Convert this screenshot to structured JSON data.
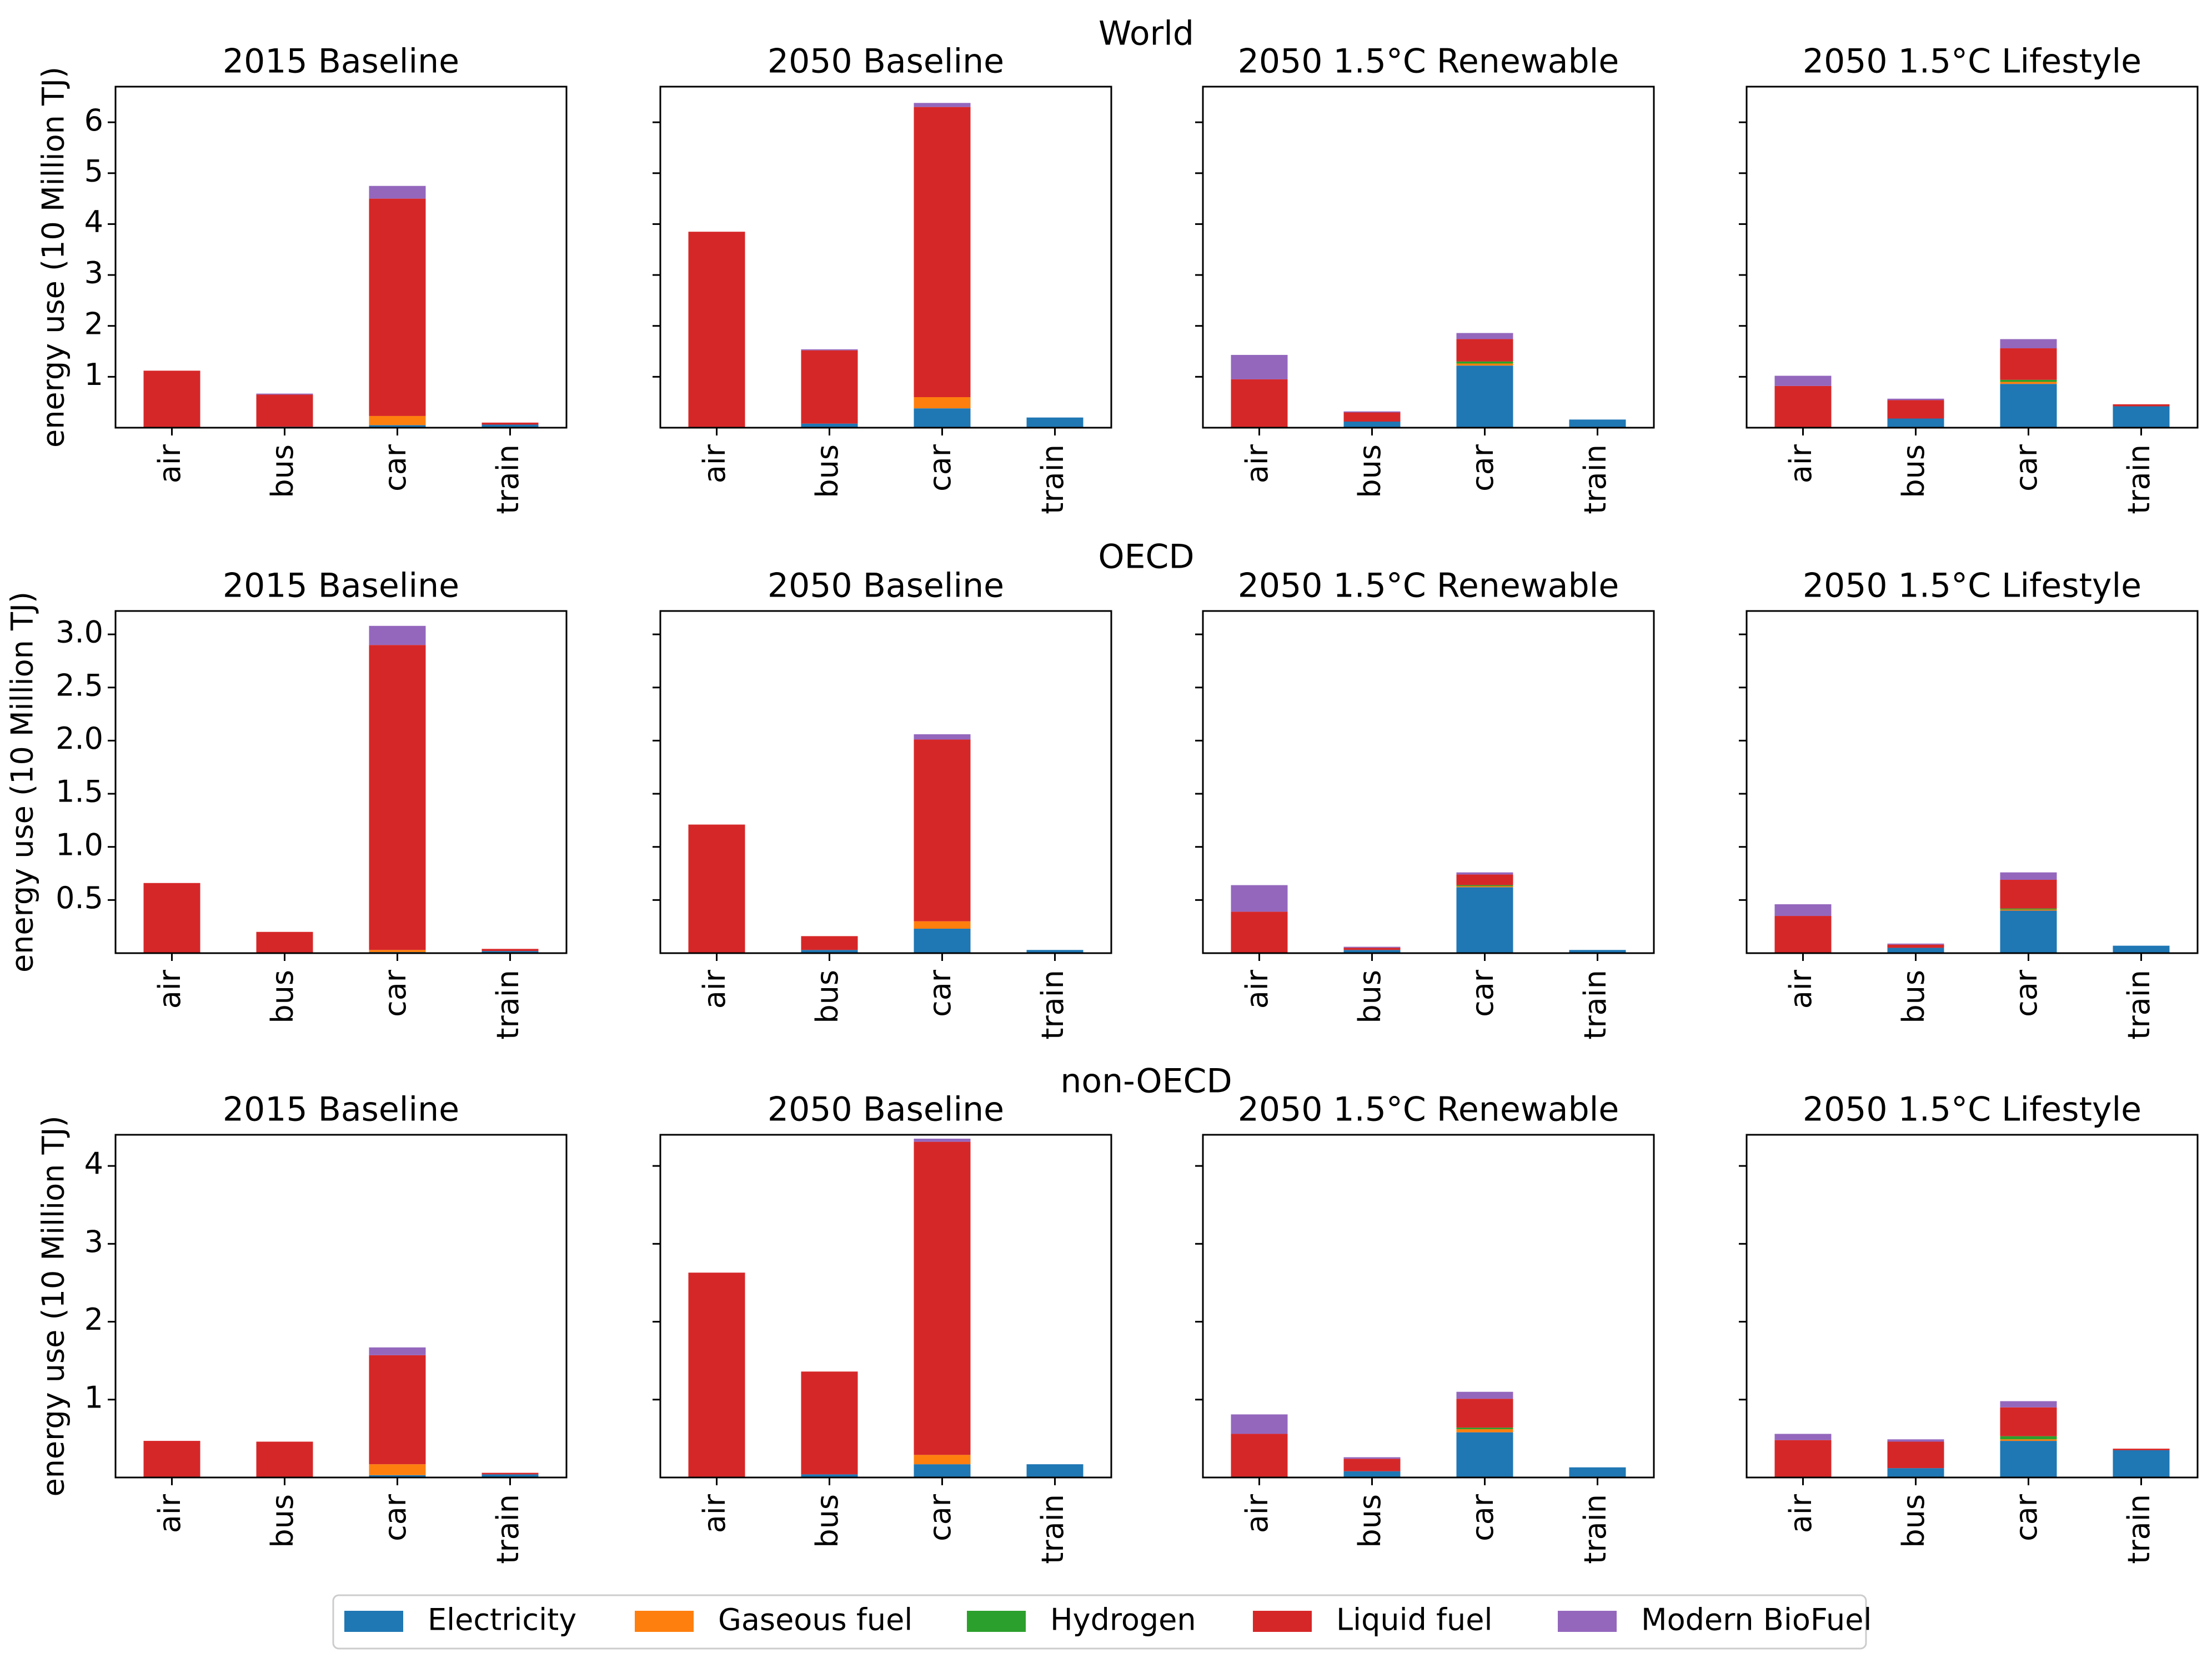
{
  "chart_data": {
    "type": "bar",
    "stacked": true,
    "categories": [
      "air",
      "bus",
      "car",
      "train"
    ],
    "ylabel": "energy use (10 Million TJ)",
    "stack_order": [
      "Electricity",
      "Gaseous fuel",
      "Hydrogen",
      "Liquid fuel",
      "Modern BioFuel"
    ],
    "colors": {
      "Electricity": "#1f77b4",
      "Gaseous fuel": "#ff7f0e",
      "Hydrogen": "#2ca02c",
      "Liquid fuel": "#d62728",
      "Modern BioFuel": "#9467bd"
    },
    "legend": {
      "placement": "bottom-center",
      "entries": [
        "Electricity",
        "Gaseous fuel",
        "Hydrogen",
        "Liquid fuel",
        "Modern BioFuel"
      ]
    },
    "regions": [
      {
        "title": "World",
        "ylim": [
          0,
          6.7
        ],
        "yticks": [
          1,
          2,
          3,
          4,
          5,
          6
        ],
        "ytick_labels": [
          "1",
          "2",
          "3",
          "4",
          "5",
          "6"
        ],
        "panels": [
          {
            "title": "2015 Baseline",
            "series": [
              {
                "name": "Electricity",
                "values": [
                  0,
                  0.02,
                  0.05,
                  0.06
                ]
              },
              {
                "name": "Gaseous fuel",
                "values": [
                  0,
                  0,
                  0.18,
                  0
                ]
              },
              {
                "name": "Hydrogen",
                "values": [
                  0,
                  0,
                  0,
                  0
                ]
              },
              {
                "name": "Liquid fuel",
                "values": [
                  1.12,
                  0.63,
                  4.27,
                  0.04
                ]
              },
              {
                "name": "Modern BioFuel",
                "values": [
                  0,
                  0.02,
                  0.25,
                  0
                ]
              }
            ]
          },
          {
            "title": "2050 Baseline",
            "series": [
              {
                "name": "Electricity",
                "values": [
                  0,
                  0.08,
                  0.38,
                  0.2
                ]
              },
              {
                "name": "Gaseous fuel",
                "values": [
                  0,
                  0,
                  0.22,
                  0
                ]
              },
              {
                "name": "Hydrogen",
                "values": [
                  0,
                  0,
                  0,
                  0
                ]
              },
              {
                "name": "Liquid fuel",
                "values": [
                  3.85,
                  1.44,
                  5.7,
                  0
                ]
              },
              {
                "name": "Modern BioFuel",
                "values": [
                  0,
                  0.02,
                  0.08,
                  0
                ]
              }
            ]
          },
          {
            "title": "2050 1.5°C Renewable",
            "series": [
              {
                "name": "Electricity",
                "values": [
                  0,
                  0.12,
                  1.22,
                  0.16
                ]
              },
              {
                "name": "Gaseous fuel",
                "values": [
                  0,
                  0,
                  0.04,
                  0
                ]
              },
              {
                "name": "Hydrogen",
                "values": [
                  0,
                  0,
                  0.04,
                  0
                ]
              },
              {
                "name": "Liquid fuel",
                "values": [
                  0.95,
                  0.18,
                  0.44,
                  0
                ]
              },
              {
                "name": "Modern BioFuel",
                "values": [
                  0.48,
                  0.02,
                  0.12,
                  0
                ]
              }
            ]
          },
          {
            "title": "2050 1.5°C Lifestyle",
            "series": [
              {
                "name": "Electricity",
                "values": [
                  0,
                  0.18,
                  0.86,
                  0.42
                ]
              },
              {
                "name": "Gaseous fuel",
                "values": [
                  0,
                  0,
                  0.04,
                  0
                ]
              },
              {
                "name": "Hydrogen",
                "values": [
                  0,
                  0,
                  0.04,
                  0
                ]
              },
              {
                "name": "Liquid fuel",
                "values": [
                  0.82,
                  0.36,
                  0.62,
                  0.04
                ]
              },
              {
                "name": "Modern BioFuel",
                "values": [
                  0.2,
                  0.03,
                  0.18,
                  0
                ]
              }
            ]
          }
        ]
      },
      {
        "title": "OECD",
        "ylim": [
          0,
          3.22
        ],
        "yticks": [
          0.5,
          1.0,
          1.5,
          2.0,
          2.5,
          3.0
        ],
        "ytick_labels": [
          "0.5",
          "1.0",
          "1.5",
          "2.0",
          "2.5",
          "3.0"
        ],
        "panels": [
          {
            "title": "2015 Baseline",
            "series": [
              {
                "name": "Electricity",
                "values": [
                  0,
                  0,
                  0.01,
                  0.02
                ]
              },
              {
                "name": "Gaseous fuel",
                "values": [
                  0,
                  0,
                  0.02,
                  0
                ]
              },
              {
                "name": "Hydrogen",
                "values": [
                  0,
                  0,
                  0,
                  0
                ]
              },
              {
                "name": "Liquid fuel",
                "values": [
                  0.66,
                  0.2,
                  2.87,
                  0.02
                ]
              },
              {
                "name": "Modern BioFuel",
                "values": [
                  0,
                  0,
                  0.18,
                  0
                ]
              }
            ]
          },
          {
            "title": "2050 Baseline",
            "series": [
              {
                "name": "Electricity",
                "values": [
                  0,
                  0.03,
                  0.23,
                  0.03
                ]
              },
              {
                "name": "Gaseous fuel",
                "values": [
                  0,
                  0,
                  0.07,
                  0
                ]
              },
              {
                "name": "Hydrogen",
                "values": [
                  0,
                  0,
                  0,
                  0
                ]
              },
              {
                "name": "Liquid fuel",
                "values": [
                  1.21,
                  0.13,
                  1.71,
                  0
                ]
              },
              {
                "name": "Modern BioFuel",
                "values": [
                  0,
                  0,
                  0.05,
                  0
                ]
              }
            ]
          },
          {
            "title": "2050 1.5°C Renewable",
            "series": [
              {
                "name": "Electricity",
                "values": [
                  0,
                  0.03,
                  0.62,
                  0.03
                ]
              },
              {
                "name": "Gaseous fuel",
                "values": [
                  0,
                  0,
                  0.01,
                  0
                ]
              },
              {
                "name": "Hydrogen",
                "values": [
                  0,
                  0,
                  0.01,
                  0
                ]
              },
              {
                "name": "Liquid fuel",
                "values": [
                  0.39,
                  0.02,
                  0.1,
                  0
                ]
              },
              {
                "name": "Modern BioFuel",
                "values": [
                  0.25,
                  0.01,
                  0.02,
                  0
                ]
              }
            ]
          },
          {
            "title": "2050 1.5°C Lifestyle",
            "series": [
              {
                "name": "Electricity",
                "values": [
                  0,
                  0.05,
                  0.4,
                  0.07
                ]
              },
              {
                "name": "Gaseous fuel",
                "values": [
                  0,
                  0,
                  0.01,
                  0
                ]
              },
              {
                "name": "Hydrogen",
                "values": [
                  0,
                  0,
                  0.01,
                  0
                ]
              },
              {
                "name": "Liquid fuel",
                "values": [
                  0.35,
                  0.03,
                  0.27,
                  0
                ]
              },
              {
                "name": "Modern BioFuel",
                "values": [
                  0.11,
                  0.01,
                  0.07,
                  0
                ]
              }
            ]
          }
        ]
      },
      {
        "title": "non-OECD",
        "ylim": [
          0,
          4.4
        ],
        "yticks": [
          1,
          2,
          3,
          4
        ],
        "ytick_labels": [
          "1",
          "2",
          "3",
          "4"
        ],
        "panels": [
          {
            "title": "2015 Baseline",
            "series": [
              {
                "name": "Electricity",
                "values": [
                  0,
                  0.01,
                  0.03,
                  0.04
                ]
              },
              {
                "name": "Gaseous fuel",
                "values": [
                  0,
                  0,
                  0.14,
                  0
                ]
              },
              {
                "name": "Hydrogen",
                "values": [
                  0,
                  0,
                  0,
                  0
                ]
              },
              {
                "name": "Liquid fuel",
                "values": [
                  0.47,
                  0.45,
                  1.4,
                  0.02
                ]
              },
              {
                "name": "Modern BioFuel",
                "values": [
                  0,
                  0,
                  0.1,
                  0
                ]
              }
            ]
          },
          {
            "title": "2050 Baseline",
            "series": [
              {
                "name": "Electricity",
                "values": [
                  0,
                  0.04,
                  0.17,
                  0.17
                ]
              },
              {
                "name": "Gaseous fuel",
                "values": [
                  0,
                  0,
                  0.12,
                  0
                ]
              },
              {
                "name": "Hydrogen",
                "values": [
                  0,
                  0,
                  0,
                  0
                ]
              },
              {
                "name": "Liquid fuel",
                "values": [
                  2.63,
                  1.32,
                  4.02,
                  0
                ]
              },
              {
                "name": "Modern BioFuel",
                "values": [
                  0,
                  0,
                  0.04,
                  0
                ]
              }
            ]
          },
          {
            "title": "2050 1.5°C Renewable",
            "series": [
              {
                "name": "Electricity",
                "values": [
                  0,
                  0.08,
                  0.58,
                  0.13
                ]
              },
              {
                "name": "Gaseous fuel",
                "values": [
                  0,
                  0,
                  0.04,
                  0
                ]
              },
              {
                "name": "Hydrogen",
                "values": [
                  0,
                  0,
                  0.02,
                  0
                ]
              },
              {
                "name": "Liquid fuel",
                "values": [
                  0.56,
                  0.16,
                  0.37,
                  0
                ]
              },
              {
                "name": "Modern BioFuel",
                "values": [
                  0.25,
                  0.02,
                  0.09,
                  0
                ]
              }
            ]
          },
          {
            "title": "2050 1.5°C Lifestyle",
            "series": [
              {
                "name": "Electricity",
                "values": [
                  0,
                  0.12,
                  0.47,
                  0.35
                ]
              },
              {
                "name": "Gaseous fuel",
                "values": [
                  0,
                  0,
                  0.02,
                  0
                ]
              },
              {
                "name": "Hydrogen",
                "values": [
                  0,
                  0,
                  0.04,
                  0
                ]
              },
              {
                "name": "Liquid fuel",
                "values": [
                  0.48,
                  0.34,
                  0.37,
                  0.02
                ]
              },
              {
                "name": "Modern BioFuel",
                "values": [
                  0.08,
                  0.03,
                  0.08,
                  0
                ]
              }
            ]
          }
        ]
      }
    ]
  }
}
